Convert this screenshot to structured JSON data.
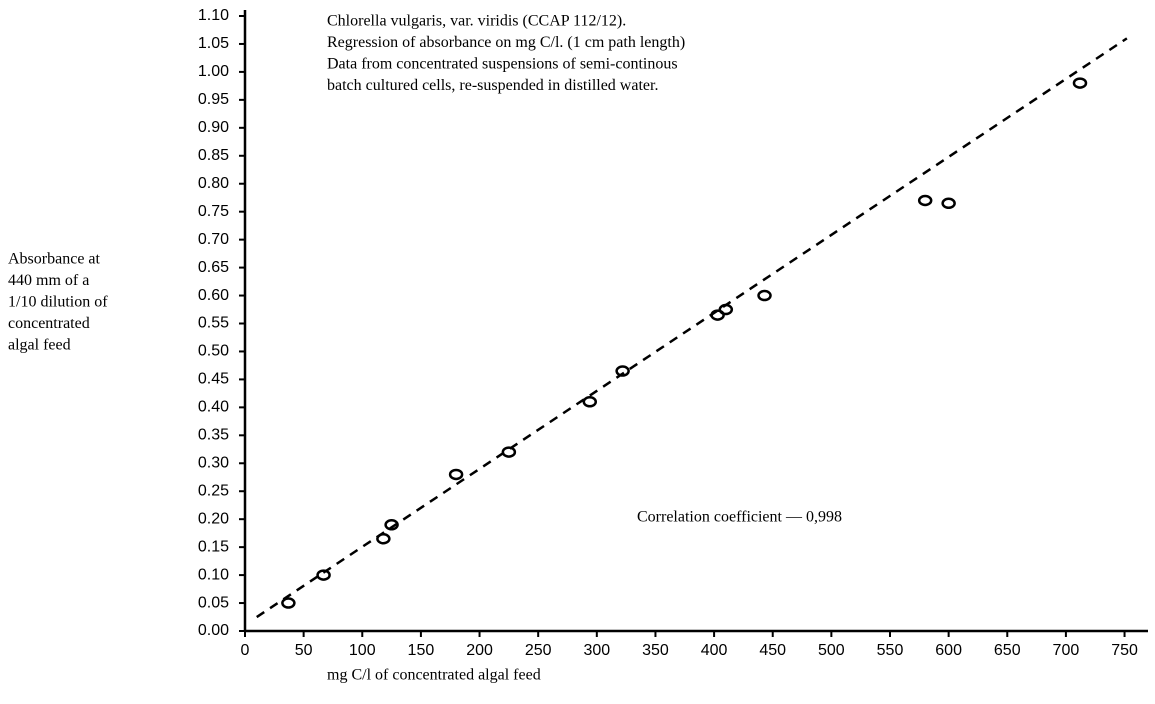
{
  "chart_data": {
    "type": "scatter",
    "annotation_lines": [
      "Chlorella vulgaris, var. viridis (CCAP 112/12).",
      "Regression of absorbance on mg C/l. (1 cm path length)",
      "Data from concentrated suspensions of semi-continous",
      "batch cultured cells, re-suspended in distilled water."
    ],
    "correlation_label": "Correlation coefficient — 0,998",
    "ylabel_lines": [
      "Absorbance at",
      "440 mm of a",
      "1/10 dilution of",
      "concentrated",
      "algal feed"
    ],
    "xlabel": "mg C/l of concentrated algal feed",
    "x": [
      37,
      67,
      118,
      125,
      180,
      225,
      294,
      322,
      403,
      410,
      443,
      580,
      600,
      712
    ],
    "values": [
      0.05,
      0.1,
      0.165,
      0.19,
      0.28,
      0.32,
      0.41,
      0.465,
      0.565,
      0.575,
      0.6,
      0.77,
      0.765,
      0.98
    ],
    "color": "#000000",
    "regression": {
      "x": [
        10,
        752
      ],
      "values": [
        0.025,
        1.06
      ],
      "color": "#000000",
      "dashed": true
    },
    "xlim": [
      0,
      770
    ],
    "ylim": [
      0,
      1.1
    ],
    "xticks": [
      0,
      50,
      100,
      150,
      200,
      250,
      300,
      350,
      400,
      450,
      500,
      550,
      600,
      650,
      700,
      750
    ],
    "yticks": [
      {
        "value": 0,
        "label": "0.00"
      },
      {
        "value": 0.05,
        "label": "0.05"
      },
      {
        "value": 0.1,
        "label": "0.10"
      },
      {
        "value": 0.15,
        "label": "0.15"
      },
      {
        "value": 0.2,
        "label": "0.20"
      },
      {
        "value": 0.25,
        "label": "0.25"
      },
      {
        "value": 0.3,
        "label": "0.30"
      },
      {
        "value": 0.35,
        "label": "0.35"
      },
      {
        "value": 0.4,
        "label": "0.40"
      },
      {
        "value": 0.45,
        "label": "0.45"
      },
      {
        "value": 0.5,
        "label": "0.50"
      },
      {
        "value": 0.55,
        "label": "0.55"
      },
      {
        "value": 0.6,
        "label": "0.60"
      },
      {
        "value": 0.65,
        "label": "0.65"
      },
      {
        "value": 0.7,
        "label": "0.70"
      },
      {
        "value": 0.75,
        "label": "0.75"
      },
      {
        "value": 0.8,
        "label": "0.80"
      },
      {
        "value": 0.85,
        "label": "0.85"
      },
      {
        "value": 0.9,
        "label": "0.90"
      },
      {
        "value": 0.95,
        "label": "0.95"
      },
      {
        "value": 1.0,
        "label": "1.00"
      },
      {
        "value": 1.05,
        "label": "1.05"
      },
      {
        "value": 1.1,
        "label": "1.10"
      }
    ]
  }
}
